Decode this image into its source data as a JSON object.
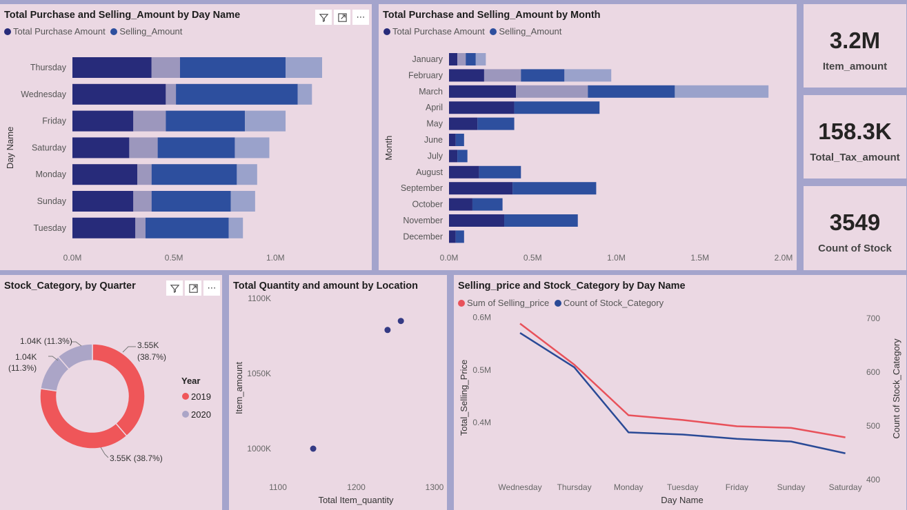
{
  "colors": {
    "purchase": "#272b7a",
    "purchase_light": "#9c97bd",
    "selling": "#2d4f9e",
    "selling_light": "#9aa2cb",
    "q2019": "#ef5659",
    "q2020": "#aba5c7",
    "line_price": "#e8515a",
    "line_count": "#2a4a96"
  },
  "toolbar_icons": [
    "filter-icon",
    "focus-mode-icon",
    "more-options-icon"
  ],
  "kpis": [
    {
      "value": "3.2M",
      "label": "Item_amount"
    },
    {
      "value": "158.3K",
      "label": "Total_Tax_amount"
    },
    {
      "value": "3549",
      "label": "Count of Stock"
    }
  ],
  "chart_data": [
    {
      "type": "bar",
      "orientation": "horizontal-stacked",
      "title": "Total Purchase and Selling_Amount by Day Name",
      "ylabel": "Day Name",
      "xlabel": "",
      "legend": [
        "Total Purchase Amount",
        "Selling_Amount"
      ],
      "xticks": [
        "0.0M",
        "0.5M",
        "1.0M"
      ],
      "xlim": [
        0,
        1.23
      ],
      "categories": [
        "Thursday",
        "Wednesday",
        "Friday",
        "Saturday",
        "Monday",
        "Sunday",
        "Tuesday"
      ],
      "series": [
        {
          "name": "Total Purchase Amount",
          "segments": [
            [
              0.39,
              0.14
            ],
            [
              0.46,
              0.05
            ],
            [
              0.3,
              0.16
            ],
            [
              0.28,
              0.14
            ],
            [
              0.32,
              0.07
            ],
            [
              0.3,
              0.09
            ],
            [
              0.31,
              0.05
            ]
          ]
        },
        {
          "name": "Selling_Amount",
          "segments": [
            [
              0.52,
              0.18
            ],
            [
              0.6,
              0.07
            ],
            [
              0.39,
              0.2
            ],
            [
              0.38,
              0.17
            ],
            [
              0.42,
              0.1
            ],
            [
              0.39,
              0.12
            ],
            [
              0.41,
              0.07
            ]
          ]
        }
      ]
    },
    {
      "type": "bar",
      "orientation": "horizontal-stacked",
      "title": "Total Purchase and Selling_Amount by Month",
      "ylabel": "Month",
      "xlabel": "",
      "legend": [
        "Total Purchase Amount",
        "Selling_Amount"
      ],
      "xticks": [
        "0.0M",
        "0.5M",
        "1.0M",
        "1.5M",
        "2.0M"
      ],
      "xlim": [
        0,
        2.0
      ],
      "categories": [
        "January",
        "February",
        "March",
        "April",
        "May",
        "June",
        "July",
        "August",
        "September",
        "October",
        "November",
        "December"
      ],
      "series": [
        {
          "name": "Total Purchase Amount",
          "segments": [
            [
              0.05,
              0.05
            ],
            [
              0.21,
              0.22
            ],
            [
              0.4,
              0.43
            ],
            [
              0.39,
              0
            ],
            [
              0.17,
              0
            ],
            [
              0.04,
              0
            ],
            [
              0.05,
              0
            ],
            [
              0.18,
              0
            ],
            [
              0.38,
              0
            ],
            [
              0.14,
              0
            ],
            [
              0.33,
              0
            ],
            [
              0.04,
              0
            ]
          ]
        },
        {
          "name": "Selling_Amount",
          "segments": [
            [
              0.06,
              0.06
            ],
            [
              0.26,
              0.28
            ],
            [
              0.52,
              0.56
            ],
            [
              0.51,
              0
            ],
            [
              0.22,
              0
            ],
            [
              0.05,
              0
            ],
            [
              0.06,
              0
            ],
            [
              0.25,
              0
            ],
            [
              0.5,
              0
            ],
            [
              0.18,
              0
            ],
            [
              0.44,
              0
            ],
            [
              0.05,
              0
            ]
          ]
        }
      ]
    },
    {
      "type": "pie",
      "title": "Stock_Category, by Quarter",
      "legend_title": "Year",
      "legend": [
        "2019",
        "2020"
      ],
      "slices": [
        {
          "year": "2019",
          "value": 3.55,
          "label": "3.55K (38.7%)"
        },
        {
          "year": "2019",
          "value": 3.55,
          "label": "3.55K (38.7%)"
        },
        {
          "year": "2020",
          "value": 1.04,
          "label": "1.04K (11.3%)"
        },
        {
          "year": "2020",
          "value": 1.04,
          "label": "1.04K (11.3%)"
        }
      ],
      "label_texts": {
        "top_right": "3.55K\n(38.7%)",
        "bottom": "3.55K (38.7%)",
        "left": "1.04K\n(11.3%)",
        "top_left": "1.04K (11.3%)"
      }
    },
    {
      "type": "scatter",
      "title": "Total Quantity and amount by Location",
      "xlabel": "Total Item_quantity",
      "ylabel": "Item_amount",
      "xticks": [
        "1100",
        "1200",
        "1300"
      ],
      "yticks": [
        "1000K",
        "1050K",
        "1100K"
      ],
      "xlim": [
        1100,
        1300
      ],
      "ylim": [
        1000,
        1100
      ],
      "points": [
        {
          "x": 1145,
          "y": 1000
        },
        {
          "x": 1240,
          "y": 1079
        },
        {
          "x": 1257,
          "y": 1085
        }
      ]
    },
    {
      "type": "line",
      "title": "Selling_price and Stock_Category by Day Name",
      "xlabel": "Day Name",
      "ylabel": "Total_Selling_Price",
      "y2label": "Count of Stock_Category",
      "legend": [
        "Sum of Selling_price",
        "Count of Stock_Category"
      ],
      "categories": [
        "Wednesday",
        "Thursday",
        "Monday",
        "Tuesday",
        "Friday",
        "Sunday",
        "Saturday"
      ],
      "yticks": [
        "0.4M",
        "0.5M",
        "0.6M"
      ],
      "y2ticks": [
        "400",
        "500",
        "600",
        "700"
      ],
      "ylim": [
        0.344,
        0.607
      ],
      "y2lim": [
        400,
        700
      ],
      "series": [
        {
          "name": "Sum of Selling_price",
          "values": [
            0.588,
            0.51,
            0.414,
            0.405,
            0.393,
            0.39,
            0.372
          ],
          "axis": "left"
        },
        {
          "name": "Count of Stock_Category",
          "values": [
            673,
            609,
            488,
            484,
            476,
            471,
            449
          ],
          "axis": "right"
        }
      ]
    }
  ]
}
